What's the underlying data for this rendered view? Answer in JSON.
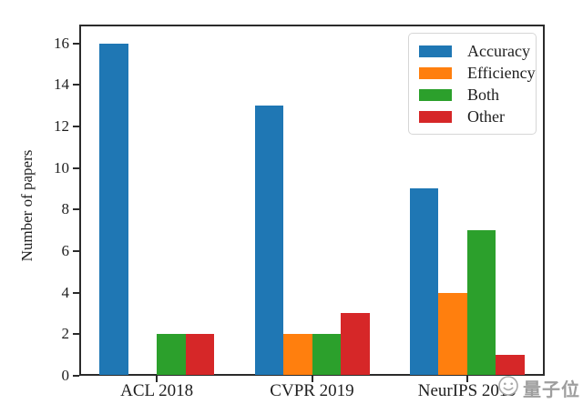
{
  "chart_data": {
    "type": "bar",
    "title": "",
    "categories": [
      "ACL 2018",
      "CVPR 2019",
      "NeurIPS 2019"
    ],
    "series": [
      {
        "name": "Accuracy",
        "color": "#1f77b4",
        "values": [
          16,
          13,
          9
        ]
      },
      {
        "name": "Efficiency",
        "color": "#ff7f0e",
        "values": [
          0,
          2,
          4
        ]
      },
      {
        "name": "Both",
        "color": "#2ca02c",
        "values": [
          2,
          2,
          7
        ]
      },
      {
        "name": "Other",
        "color": "#d62728",
        "values": [
          2,
          3,
          1
        ]
      }
    ],
    "xlabel": "",
    "ylabel": "Number of papers",
    "yticks": [
      0,
      2,
      4,
      6,
      8,
      10,
      12,
      14,
      16
    ],
    "ylim": [
      0,
      16.9
    ],
    "grid": false,
    "legend_position": "upper right",
    "axis_color": "#2b2b2b"
  },
  "watermark": {
    "text": "量子位",
    "icon": "smiley-face-icon"
  }
}
